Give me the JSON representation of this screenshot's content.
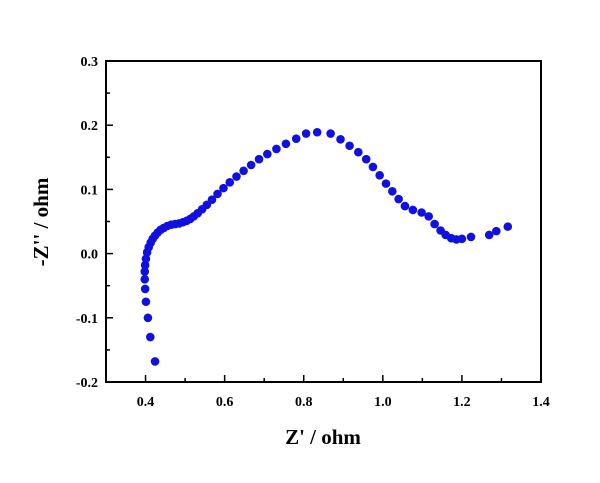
{
  "chart_data": {
    "type": "scatter",
    "title": "",
    "xlabel": "Z' / ohm",
    "ylabel": "-Z'' / ohm",
    "xlim": [
      0.3,
      1.4
    ],
    "ylim": [
      -0.2,
      0.3
    ],
    "xticks": [
      0.4,
      0.6,
      0.8,
      1.0,
      1.2,
      1.4
    ],
    "xtick_labels": [
      "0.4",
      "0.6",
      "0.8",
      "1.0",
      "1.2",
      "1.4"
    ],
    "yticks": [
      -0.2,
      -0.1,
      0.0,
      0.1,
      0.2,
      0.3
    ],
    "ytick_labels": [
      "-0.2",
      "-0.1",
      "0.0",
      "0.1",
      "0.2",
      "0.3"
    ],
    "grid": false,
    "marker_color": "#1010e0",
    "series": [
      {
        "x": [
          0.424,
          0.412,
          0.406,
          0.401,
          0.399,
          0.398,
          0.398,
          0.399,
          0.401,
          0.404,
          0.408,
          0.413,
          0.418,
          0.424,
          0.431,
          0.438,
          0.446,
          0.455,
          0.465,
          0.475,
          0.485,
          0.495,
          0.504,
          0.513,
          0.522,
          0.532,
          0.543,
          0.555,
          0.568,
          0.582,
          0.597,
          0.613,
          0.63,
          0.648,
          0.667,
          0.687,
          0.708,
          0.731,
          0.755,
          0.781,
          0.806,
          0.834,
          0.868,
          0.893,
          0.916,
          0.938,
          0.958,
          0.975,
          0.992,
          1.008,
          1.024,
          1.04,
          1.056,
          1.076,
          1.098,
          1.116,
          1.131,
          1.146,
          1.159,
          1.173,
          1.186,
          1.2,
          1.223,
          1.269,
          1.287,
          1.316
        ],
        "y": [
          -0.168,
          -0.13,
          -0.1,
          -0.075,
          -0.055,
          -0.04,
          -0.028,
          -0.018,
          -0.008,
          0.002,
          0.01,
          0.017,
          0.023,
          0.028,
          0.033,
          0.037,
          0.04,
          0.043,
          0.045,
          0.046,
          0.047,
          0.049,
          0.051,
          0.054,
          0.058,
          0.063,
          0.069,
          0.076,
          0.084,
          0.093,
          0.102,
          0.111,
          0.12,
          0.129,
          0.138,
          0.147,
          0.155,
          0.163,
          0.171,
          0.179,
          0.187,
          0.189,
          0.187,
          0.178,
          0.168,
          0.158,
          0.147,
          0.135,
          0.122,
          0.109,
          0.097,
          0.085,
          0.074,
          0.068,
          0.064,
          0.058,
          0.046,
          0.036,
          0.029,
          0.024,
          0.022,
          0.023,
          0.026,
          0.029,
          0.035,
          0.042
        ]
      }
    ]
  }
}
